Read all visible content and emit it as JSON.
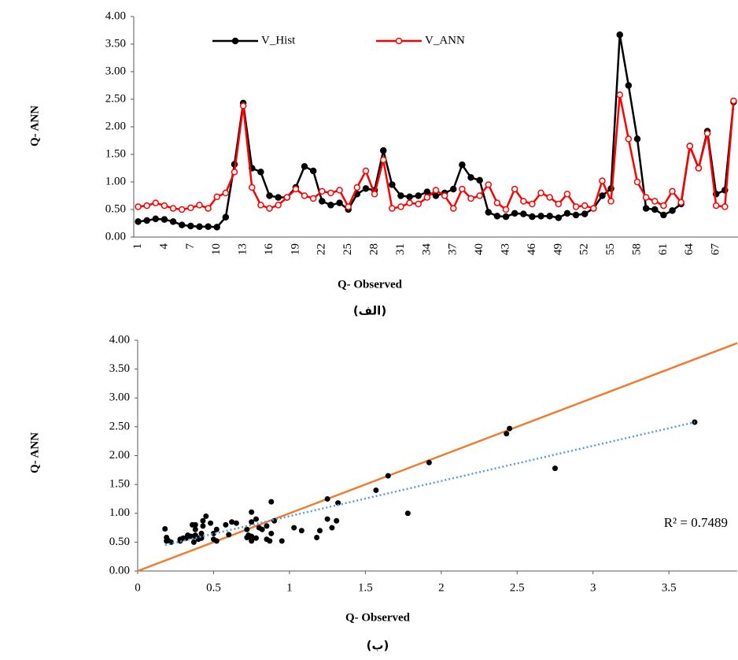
{
  "chart_data": [
    {
      "type": "line",
      "ylabel": "Q- ANN",
      "xlabel": "Q- Observed",
      "caption": "(الف)",
      "categories": [
        "1",
        null,
        null,
        "4",
        null,
        null,
        "7",
        null,
        null,
        "10",
        null,
        null,
        "13",
        null,
        null,
        "16",
        null,
        null,
        "19",
        null,
        null,
        "22",
        null,
        null,
        "25",
        null,
        null,
        "28",
        null,
        null,
        "31",
        null,
        null,
        "34",
        null,
        null,
        "37",
        null,
        null,
        "40",
        null,
        null,
        "43",
        null,
        null,
        "46",
        null,
        null,
        "49",
        null,
        null,
        "52",
        null,
        null,
        "55",
        null,
        null,
        "58",
        null,
        null,
        "61",
        null,
        null,
        "64",
        null,
        null,
        "67",
        null,
        null
      ],
      "series": [
        {
          "name": "V_Hist",
          "color": "#000000",
          "marker_fill": "#000000",
          "values": [
            0.28,
            0.3,
            0.33,
            0.32,
            0.28,
            0.22,
            0.2,
            0.19,
            0.19,
            0.18,
            0.36,
            1.32,
            2.43,
            1.25,
            1.18,
            0.75,
            0.72,
            0.72,
            0.9,
            1.28,
            1.2,
            0.65,
            0.58,
            0.62,
            0.5,
            0.78,
            0.88,
            0.85,
            1.57,
            0.95,
            0.75,
            0.73,
            0.75,
            0.82,
            0.75,
            0.8,
            0.87,
            1.31,
            1.08,
            1.03,
            0.45,
            0.38,
            0.37,
            0.43,
            0.42,
            0.37,
            0.38,
            0.38,
            0.35,
            0.43,
            0.4,
            0.42,
            0.52,
            0.75,
            0.88,
            3.67,
            2.75,
            1.78,
            0.52,
            0.5,
            0.4,
            0.48,
            0.6,
            1.65,
            1.25,
            1.92,
            0.78,
            0.85,
            2.45
          ]
        },
        {
          "name": "V_ANN",
          "color": "#ff0000",
          "marker_fill": "#ffffff",
          "values": [
            0.55,
            0.57,
            0.62,
            0.57,
            0.52,
            0.5,
            0.53,
            0.58,
            0.52,
            0.73,
            0.8,
            1.18,
            2.38,
            0.9,
            0.58,
            0.52,
            0.58,
            0.72,
            0.87,
            0.75,
            0.7,
            0.83,
            0.8,
            0.85,
            0.55,
            0.9,
            1.2,
            0.78,
            1.4,
            0.52,
            0.55,
            0.62,
            0.6,
            0.72,
            0.85,
            0.75,
            0.52,
            0.87,
            0.7,
            0.75,
            0.95,
            0.62,
            0.5,
            0.87,
            0.65,
            0.6,
            0.8,
            0.72,
            0.6,
            0.78,
            0.55,
            0.57,
            0.52,
            1.02,
            0.65,
            2.58,
            1.78,
            1.0,
            0.72,
            0.65,
            0.57,
            0.83,
            0.63,
            1.65,
            1.25,
            1.88,
            0.57,
            0.55,
            2.47
          ]
        }
      ],
      "ylim": [
        0,
        4
      ],
      "yticks": [
        {
          "value": 0,
          "label": "0.00"
        },
        {
          "value": 0.5,
          "label": "0.50"
        },
        {
          "value": 1,
          "label": "1.00"
        },
        {
          "value": 1.5,
          "label": "1.50"
        },
        {
          "value": 2,
          "label": "2.00"
        },
        {
          "value": 2.5,
          "label": "2.50"
        },
        {
          "value": 3,
          "label": "3.00"
        },
        {
          "value": 3.5,
          "label": "3.50"
        },
        {
          "value": 4,
          "label": "4.00"
        }
      ],
      "grid": false,
      "legend": "top"
    },
    {
      "type": "scatter",
      "ylabel": "Q- ANN",
      "xlabel": "Q- Observed",
      "caption": "(ب)",
      "color": "#000000",
      "x": [
        0.28,
        0.3,
        0.33,
        0.32,
        0.28,
        0.22,
        0.2,
        0.19,
        0.19,
        0.18,
        0.36,
        1.32,
        2.43,
        1.25,
        1.18,
        0.75,
        0.72,
        0.72,
        0.9,
        1.28,
        1.2,
        0.65,
        0.58,
        0.62,
        0.5,
        0.78,
        0.88,
        0.85,
        1.57,
        0.95,
        0.75,
        0.73,
        0.75,
        0.82,
        0.75,
        0.8,
        0.87,
        1.31,
        1.08,
        1.03,
        0.45,
        0.38,
        0.37,
        0.43,
        0.42,
        0.37,
        0.38,
        0.38,
        0.35,
        0.43,
        0.4,
        0.42,
        0.52,
        0.75,
        0.88,
        3.67,
        2.75,
        1.78,
        0.52,
        0.5,
        0.4,
        0.48,
        0.6,
        1.65,
        1.25,
        1.92,
        0.78,
        0.85,
        2.45
      ],
      "values": [
        0.55,
        0.57,
        0.62,
        0.57,
        0.52,
        0.5,
        0.53,
        0.58,
        0.52,
        0.73,
        0.8,
        1.18,
        2.38,
        0.9,
        0.58,
        0.52,
        0.58,
        0.72,
        0.87,
        0.75,
        0.7,
        0.83,
        0.8,
        0.85,
        0.55,
        0.9,
        1.2,
        0.78,
        1.4,
        0.52,
        0.55,
        0.62,
        0.6,
        0.72,
        0.85,
        0.75,
        0.52,
        0.87,
        0.7,
        0.75,
        0.95,
        0.62,
        0.5,
        0.87,
        0.65,
        0.6,
        0.8,
        0.72,
        0.6,
        0.78,
        0.55,
        0.57,
        0.52,
        1.02,
        0.65,
        2.58,
        1.78,
        1.0,
        0.72,
        0.65,
        0.57,
        0.83,
        0.63,
        1.65,
        1.25,
        1.88,
        0.57,
        0.55,
        2.47
      ],
      "xlim": [
        0,
        3.95
      ],
      "xticks": [
        0,
        0.5,
        1,
        1.5,
        2,
        2.5,
        3,
        3.5
      ],
      "ylim": [
        0,
        4
      ],
      "yticks": [
        {
          "value": 0,
          "label": "0.00"
        },
        {
          "value": 0.5,
          "label": "0.50"
        },
        {
          "value": 1,
          "label": "1.00"
        },
        {
          "value": 1.5,
          "label": "1.50"
        },
        {
          "value": 2,
          "label": "2.00"
        },
        {
          "value": 2.5,
          "label": "2.50"
        },
        {
          "value": 3,
          "label": "3.00"
        },
        {
          "value": 3.5,
          "label": "3.50"
        },
        {
          "value": 4,
          "label": "4.00"
        }
      ],
      "identity_line": {
        "color": "#ed7d31"
      },
      "trendline": {
        "slope": 0.61,
        "intercept": 0.34,
        "color": "#5b9bd5"
      },
      "annotation": "R² = 0.7489",
      "grid": false
    }
  ]
}
